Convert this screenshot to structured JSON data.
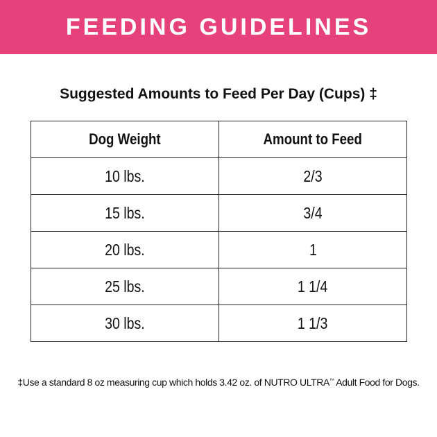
{
  "header": {
    "title": "FEEDING GUIDELINES"
  },
  "subtitle": "Suggested Amounts to Feed Per Day (Cups) ‡",
  "table": {
    "columns": [
      "Dog Weight",
      "Amount to Feed"
    ],
    "rows": [
      [
        "10 lbs.",
        "2/3"
      ],
      [
        "15 lbs.",
        "3/4"
      ],
      [
        "20 lbs.",
        "1"
      ],
      [
        "25 lbs.",
        "1 1/4"
      ],
      [
        "30 lbs.",
        "1 1/3"
      ]
    ]
  },
  "footnote": {
    "before": "‡Use a standard 8 oz measuring cup which holds 3.42 oz. of NUTRO ULTRA",
    "mark": "™",
    "after": " Adult Food for Dogs."
  }
}
